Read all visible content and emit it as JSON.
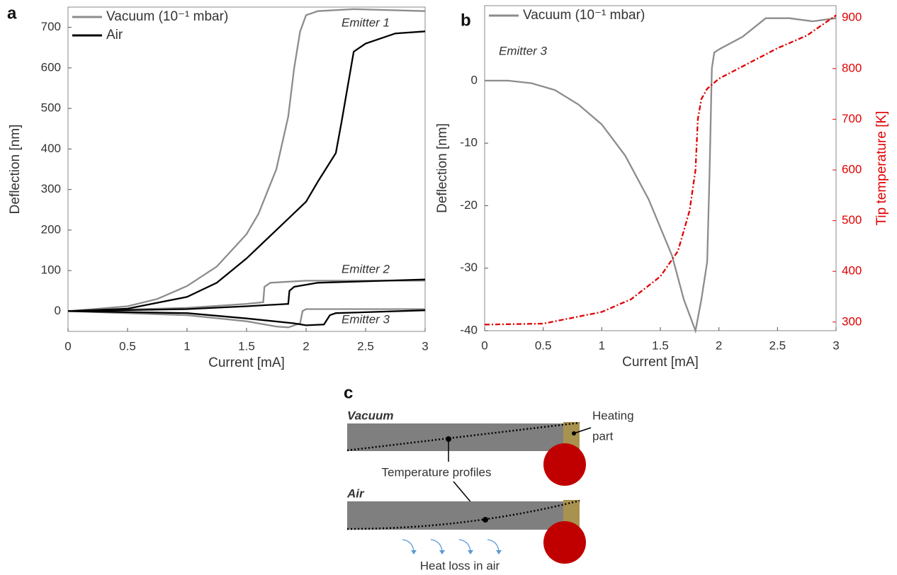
{
  "chart_data": [
    {
      "type": "line",
      "panel": "a",
      "xlabel": "Current [mA]",
      "ylabel": "Deflection [nm]",
      "xlim": [
        0,
        3
      ],
      "xticks": [
        0,
        0.5,
        1,
        1.5,
        2,
        2.5,
        3
      ],
      "ylim": [
        -50,
        750
      ],
      "yticks": [
        0,
        100,
        200,
        300,
        400,
        500,
        600,
        700
      ],
      "legend": "upper left",
      "annotations": [
        "Emitter 1",
        "Emitter 2",
        "Emitter 3"
      ],
      "series": [
        {
          "name": "Vacuum (10⁻¹ mbar)",
          "color": "#8c8c8c",
          "curves": [
            {
              "x": [
                0,
                0.5,
                0.75,
                1,
                1.25,
                1.5,
                1.6,
                1.75,
                1.85,
                1.9,
                1.95,
                2.0,
                2.1,
                2.4,
                3
              ],
              "values": [
                0,
                12,
                30,
                62,
                110,
                190,
                240,
                350,
                480,
                600,
                690,
                730,
                740,
                745,
                740
              ]
            },
            {
              "x": [
                0,
                1,
                1.5,
                1.64,
                1.65,
                1.7,
                2,
                3
              ],
              "values": [
                0,
                8,
                18,
                22,
                60,
                70,
                75,
                75
              ]
            },
            {
              "x": [
                0,
                1,
                1.5,
                1.75,
                1.85,
                1.95,
                1.97,
                2.0,
                3
              ],
              "values": [
                0,
                -10,
                -25,
                -38,
                -40,
                -30,
                0,
                5,
                5
              ]
            }
          ]
        },
        {
          "name": "Air",
          "color": "#000000",
          "curves": [
            {
              "x": [
                0,
                0.5,
                1,
                1.25,
                1.5,
                1.75,
                2,
                2.1,
                2.25,
                2.3,
                2.4,
                2.5,
                2.75,
                3
              ],
              "values": [
                0,
                6,
                35,
                70,
                130,
                200,
                270,
                320,
                390,
                470,
                640,
                660,
                685,
                690
              ]
            },
            {
              "x": [
                0,
                1,
                1.5,
                1.85,
                1.86,
                1.9,
                2.1,
                3
              ],
              "values": [
                0,
                5,
                12,
                18,
                50,
                60,
                70,
                78
              ]
            },
            {
              "x": [
                0,
                1,
                1.5,
                1.9,
                2.0,
                2.15,
                2.2,
                2.25,
                3
              ],
              "values": [
                0,
                -5,
                -18,
                -30,
                -35,
                -33,
                -10,
                -5,
                2
              ]
            }
          ]
        }
      ]
    },
    {
      "type": "line",
      "panel": "b",
      "xlabel": "Current [mA]",
      "ylabel": "Deflection [nm]",
      "y2label": "Tip temperature [K]",
      "xlim": [
        0,
        3
      ],
      "xticks": [
        0,
        0.5,
        1,
        1.5,
        2,
        2.5,
        3
      ],
      "ylim": [
        -40,
        12
      ],
      "yticks": [
        -40,
        -30,
        -20,
        -10,
        0
      ],
      "y2lim": [
        283,
        924
      ],
      "y2ticks": [
        300,
        400,
        500,
        600,
        700,
        800,
        900
      ],
      "y2color": "#e00000",
      "legend": "upper left",
      "annotations": [
        "Emitter 3"
      ],
      "series": [
        {
          "name": "Vacuum (10⁻¹ mbar)",
          "color": "#8c8c8c",
          "x": [
            0,
            0.2,
            0.4,
            0.6,
            0.8,
            1,
            1.2,
            1.4,
            1.6,
            1.7,
            1.8,
            1.85,
            1.9,
            1.92,
            1.94,
            1.96,
            2,
            2.2,
            2.4,
            2.6,
            2.8,
            3
          ],
          "values": [
            0,
            0,
            -0.4,
            -1.5,
            -3.8,
            -7,
            -12,
            -19,
            -28,
            -35,
            -40,
            -35,
            -29,
            -15,
            2,
            4.5,
            5,
            7,
            10,
            10,
            9.5,
            10
          ]
        },
        {
          "color": "#e00000",
          "axis": "y2",
          "line_style": "dash-dot",
          "x": [
            0,
            0.5,
            1,
            1.25,
            1.5,
            1.65,
            1.75,
            1.8,
            1.82,
            1.85,
            1.9,
            2,
            2.25,
            2.5,
            2.75,
            3
          ],
          "values": [
            295,
            297,
            320,
            345,
            390,
            440,
            520,
            600,
            700,
            740,
            760,
            780,
            810,
            840,
            865,
            905
          ]
        }
      ]
    }
  ],
  "diagram": {
    "panel": "c",
    "vacuum": "Vacuum",
    "air": "Air",
    "heating": [
      "Heating",
      "part"
    ],
    "profiles": "Temperature profiles",
    "heat_loss": "Heat loss in air"
  }
}
